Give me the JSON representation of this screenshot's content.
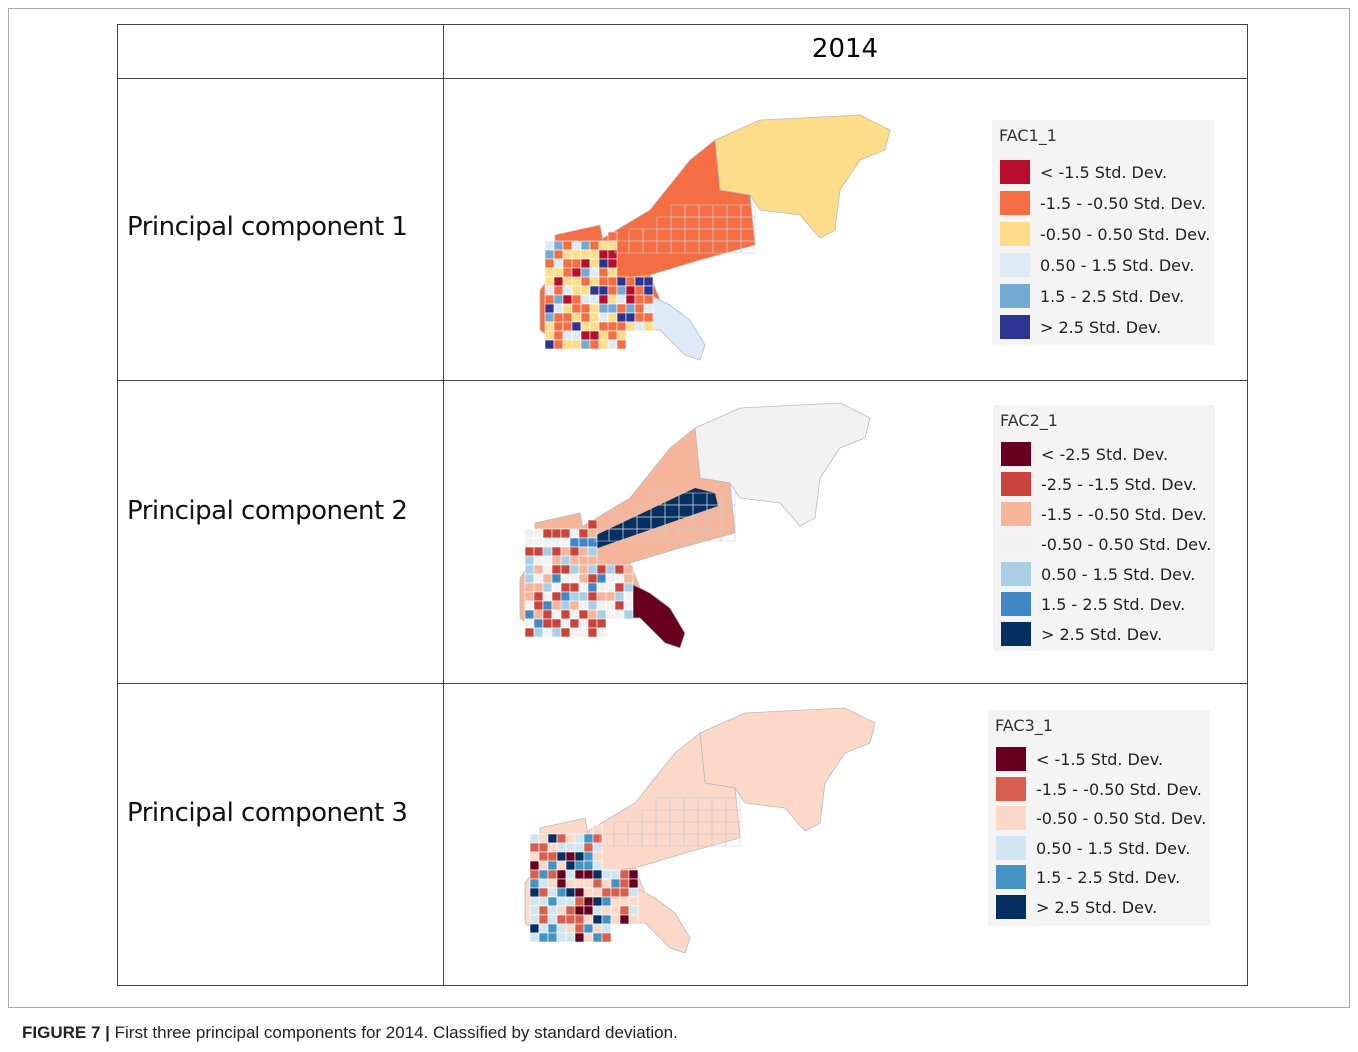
{
  "figure": {
    "header": "2014",
    "rows": [
      {
        "label": "Principal component 1",
        "legend": {
          "title": "FAC1_1",
          "entries": [
            {
              "label": "< -1.5 Std. Dev.",
              "color": "#b50f2c"
            },
            {
              "label": "-1.5 - -0.50 Std. Dev.",
              "color": "#f46d43"
            },
            {
              "label": "-0.50 - 0.50 Std. Dev.",
              "color": "#fddc8a"
            },
            {
              "label": "0.50 - 1.5 Std. Dev.",
              "color": "#deebf7"
            },
            {
              "label": "1.5 - 2.5 Std. Dev.",
              "color": "#74a9d4"
            },
            {
              "label": "> 2.5 Std. Dev.",
              "color": "#2c3591"
            }
          ]
        }
      },
      {
        "label": "Principal component 2",
        "legend": {
          "title": "FAC2_1",
          "entries": [
            {
              "label": "< -2.5 Std. Dev.",
              "color": "#67001f"
            },
            {
              "label": "-2.5 - -1.5 Std. Dev.",
              "color": "#c9443c"
            },
            {
              "label": "-1.5 - -0.50 Std. Dev.",
              "color": "#f4b59a"
            },
            {
              "label": "-0.50 - 0.50 Std. Dev.",
              "color": "#f2f2f2"
            },
            {
              "label": "0.50 - 1.5 Std. Dev.",
              "color": "#a9cfe6"
            },
            {
              "label": "1.5 - 2.5 Std. Dev.",
              "color": "#3f88c5"
            },
            {
              "label": "> 2.5 Std. Dev.",
              "color": "#053061"
            }
          ]
        }
      },
      {
        "label": "Principal component 3",
        "legend": {
          "title": "FAC3_1",
          "entries": [
            {
              "label": "< -1.5 Std. Dev.",
              "color": "#67001f"
            },
            {
              "label": "-1.5 - -0.50 Std. Dev.",
              "color": "#d6604d"
            },
            {
              "label": "-0.50 - 0.50 Std. Dev.",
              "color": "#fbd8c8"
            },
            {
              "label": "0.50 - 1.5 Std. Dev.",
              "color": "#d1e5f0"
            },
            {
              "label": "1.5 - 2.5 Std. Dev.",
              "color": "#4393c3"
            },
            {
              "label": "> 2.5 Std. Dev.",
              "color": "#053061"
            }
          ]
        }
      }
    ],
    "caption": {
      "label": "FIGURE 7 |",
      "text": "First three principal components for 2014. Classified by standard deviation."
    }
  }
}
